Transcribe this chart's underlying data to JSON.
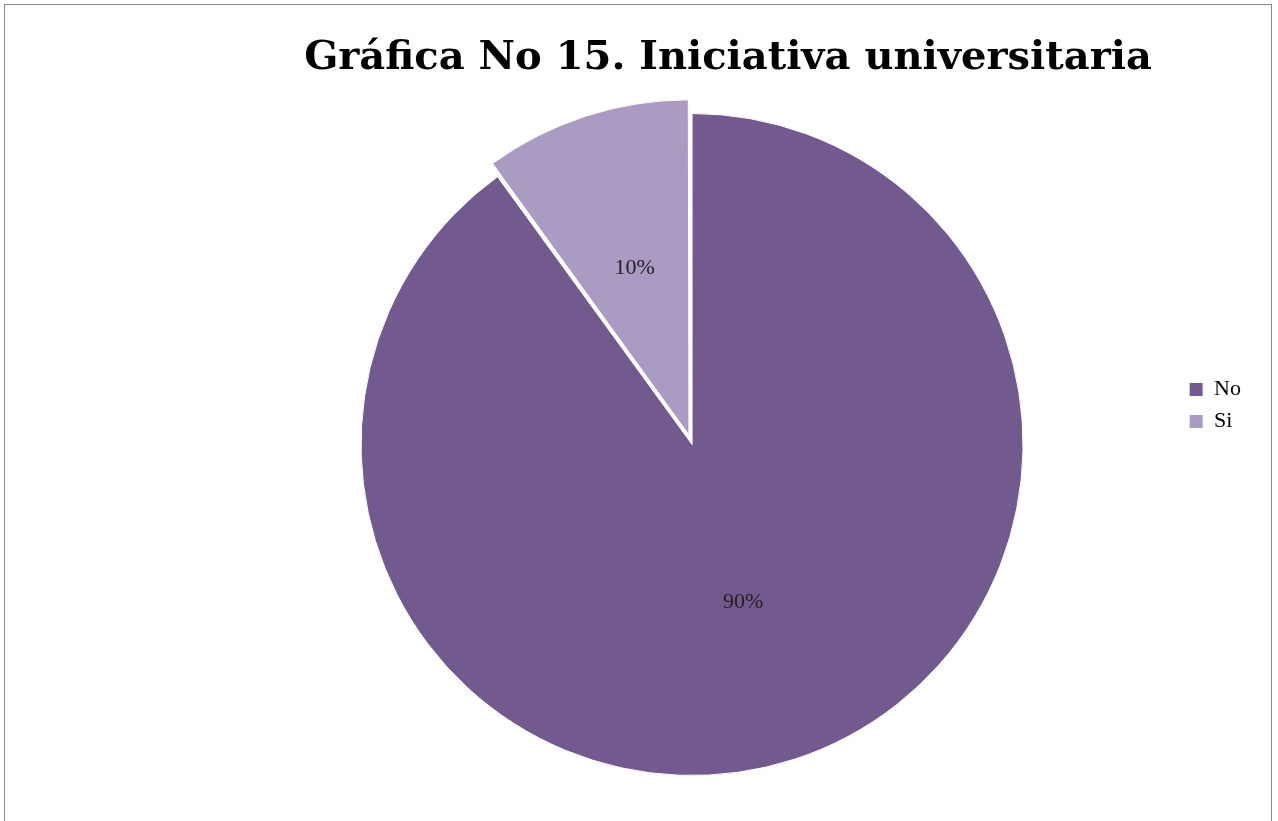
{
  "chart_data": {
    "type": "pie",
    "title": "Gráfica No 15. Iniciativa universitaria",
    "categories": [
      "No",
      "Si"
    ],
    "values": [
      90,
      10
    ],
    "colors": [
      "#725a8f",
      "#a99bc1"
    ],
    "value_labels": [
      "90%",
      "10%"
    ],
    "legend": "right"
  }
}
